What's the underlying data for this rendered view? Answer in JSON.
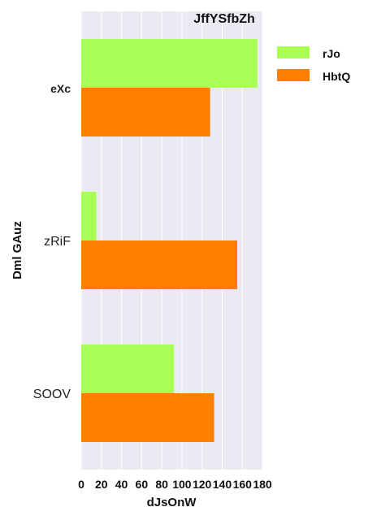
{
  "chart_data": {
    "type": "bar",
    "orientation": "horizontal",
    "title": "JffYSfbZh",
    "xlabel": "dJsOnW",
    "ylabel": "Dml GAuz",
    "categories": [
      "eXc",
      "zRiF",
      "SOOV"
    ],
    "series": [
      {
        "name": "rJo",
        "color": "#aaff55",
        "values": [
          175,
          15,
          92
        ]
      },
      {
        "name": "HbtQ",
        "color": "#ff8000",
        "values": [
          128,
          155,
          132
        ]
      }
    ],
    "xlim": [
      0,
      180
    ],
    "xticks": [
      0,
      20,
      40,
      60,
      80,
      100,
      120,
      140,
      160,
      180
    ],
    "grid": true,
    "legend_position": "top-right"
  }
}
